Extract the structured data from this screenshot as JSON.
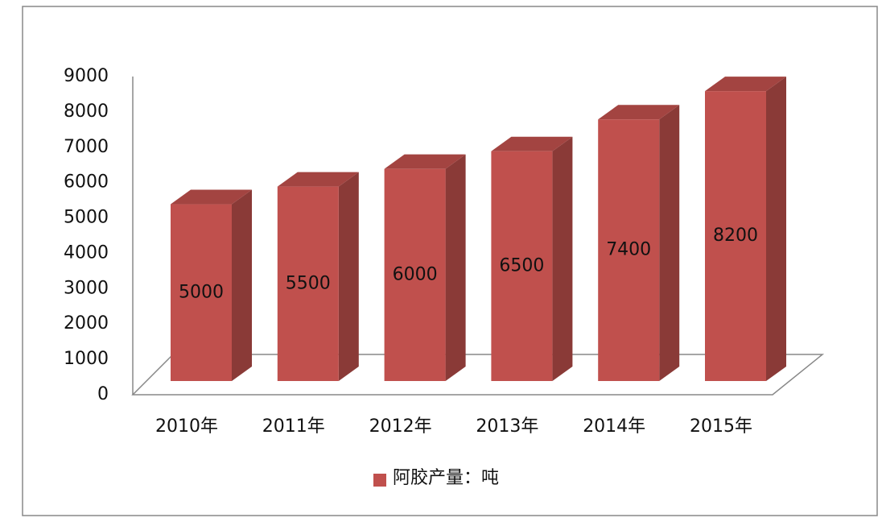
{
  "chart_data": {
    "type": "bar3d",
    "categories": [
      "2010年",
      "2011年",
      "2012年",
      "2013年",
      "2014年",
      "2015年"
    ],
    "series": [
      {
        "name": "阿胶产量：吨",
        "color": "#c0504d",
        "values": [
          5000,
          5500,
          6000,
          6500,
          7400,
          8200
        ]
      }
    ],
    "ylim": [
      0,
      9000
    ],
    "yticks": [
      0,
      1000,
      2000,
      3000,
      4000,
      5000,
      6000,
      7000,
      8000,
      9000
    ],
    "data_labels": true
  }
}
